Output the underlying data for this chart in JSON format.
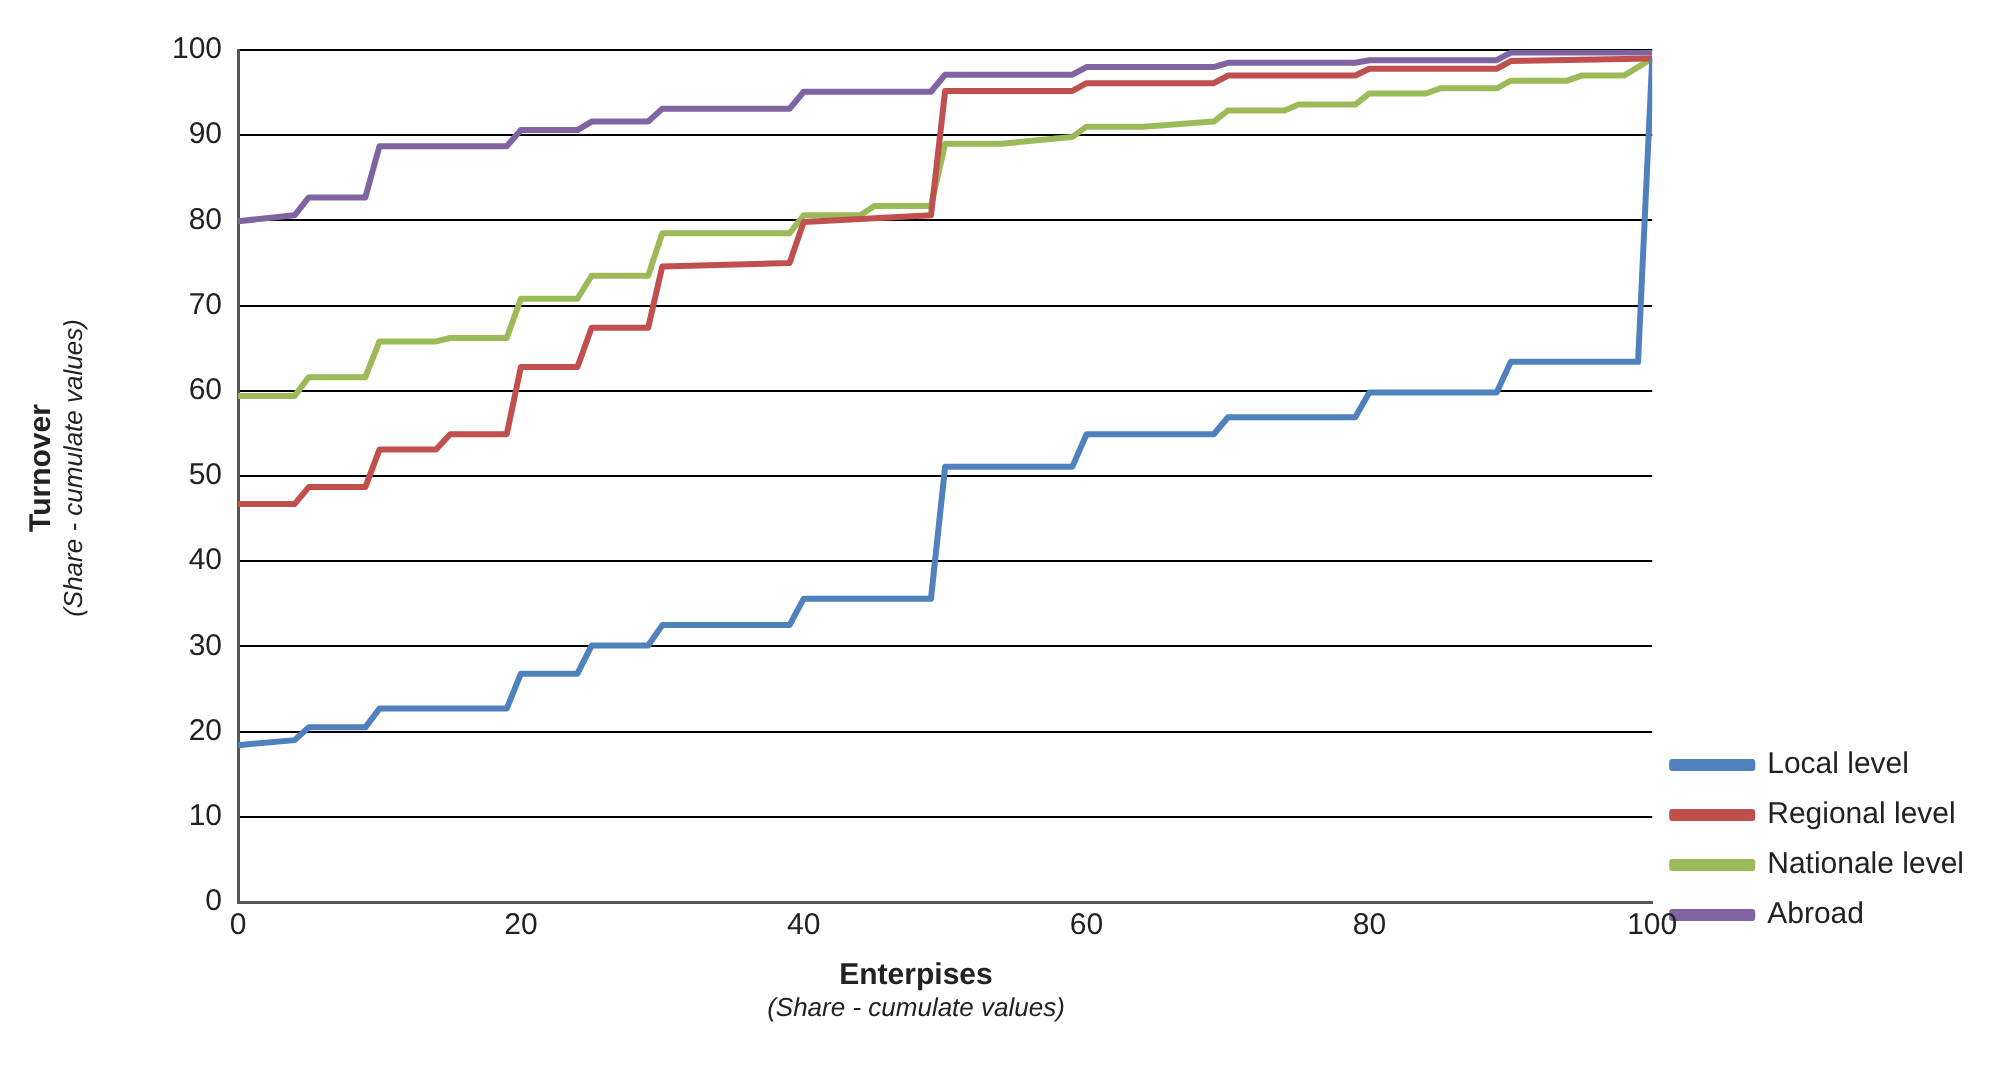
{
  "chart_data": {
    "type": "line",
    "xlabel": "Enterpises\n(Share - cumulate values)",
    "ylabel": "Turnover\n(Share - cumulate values)",
    "xlim": [
      0,
      100
    ],
    "xticks": [
      0,
      20,
      40,
      60,
      80,
      100
    ],
    "ylim": [
      0,
      100
    ],
    "yticks": [
      0,
      10,
      20,
      30,
      40,
      50,
      60,
      70,
      80,
      90,
      100
    ],
    "grid": "y",
    "legend": "right",
    "marker": "none",
    "line_style": "solid",
    "series": [
      {
        "name": "Local level",
        "color": "#4f81bd",
        "x": [
          0,
          4,
          5,
          9,
          10,
          19,
          20,
          24,
          25,
          29,
          30,
          39,
          40,
          49,
          50,
          59,
          60,
          69,
          70,
          79,
          80,
          89,
          90,
          99,
          100
        ],
        "values": [
          18.4,
          19.0,
          20.5,
          20.5,
          22.7,
          22.7,
          26.8,
          26.8,
          30.1,
          30.1,
          32.5,
          32.5,
          35.6,
          35.6,
          51.1,
          51.1,
          54.9,
          54.9,
          56.9,
          56.9,
          59.8,
          59.8,
          63.4,
          63.4,
          99
        ]
      },
      {
        "name": "Regional level",
        "color": "#c0504d",
        "x": [
          0,
          4,
          5,
          9,
          10,
          14,
          15,
          19,
          20,
          24,
          25,
          29,
          30,
          39,
          40,
          49,
          50,
          59,
          60,
          69,
          70,
          79,
          80,
          89,
          90,
          100
        ],
        "values": [
          46.7,
          46.7,
          48.7,
          48.7,
          53.1,
          53.1,
          54.9,
          54.9,
          62.8,
          62.8,
          67.4,
          67.4,
          74.6,
          75.0,
          79.8,
          80.6,
          95.2,
          95.2,
          96.1,
          96.1,
          97.0,
          97.0,
          97.8,
          97.8,
          98.7,
          99
        ]
      },
      {
        "name": "Nationale level",
        "color": "#9bbb59",
        "x": [
          0,
          4,
          5,
          9,
          10,
          14,
          15,
          19,
          20,
          24,
          25,
          29,
          30,
          39,
          40,
          44,
          45,
          49,
          50,
          54,
          59,
          60,
          64,
          69,
          70,
          74,
          75,
          79,
          80,
          84,
          85,
          89,
          90,
          94,
          95,
          98,
          100
        ],
        "values": [
          59.4,
          59.4,
          61.6,
          61.6,
          65.8,
          65.8,
          66.2,
          66.2,
          70.8,
          70.8,
          73.5,
          73.5,
          78.5,
          78.5,
          80.6,
          80.6,
          81.7,
          81.7,
          89.0,
          89.0,
          89.8,
          91.0,
          91.0,
          91.6,
          92.9,
          92.9,
          93.6,
          93.6,
          94.9,
          94.9,
          95.5,
          95.5,
          96.4,
          96.4,
          97.0,
          97.0,
          99
        ]
      },
      {
        "name": "Abroad",
        "color": "#8064a2",
        "x": [
          0,
          4,
          5,
          9,
          10,
          19,
          20,
          24,
          25,
          29,
          30,
          39,
          40,
          49,
          50,
          59,
          60,
          69,
          70,
          79,
          80,
          89,
          90,
          100
        ],
        "values": [
          79.9,
          80.6,
          82.7,
          82.7,
          88.7,
          88.7,
          90.6,
          90.6,
          91.6,
          91.6,
          93.1,
          93.1,
          95.1,
          95.1,
          97.1,
          97.1,
          98.0,
          98.0,
          98.5,
          98.5,
          98.8,
          98.8,
          99.7,
          99.7
        ]
      }
    ]
  }
}
